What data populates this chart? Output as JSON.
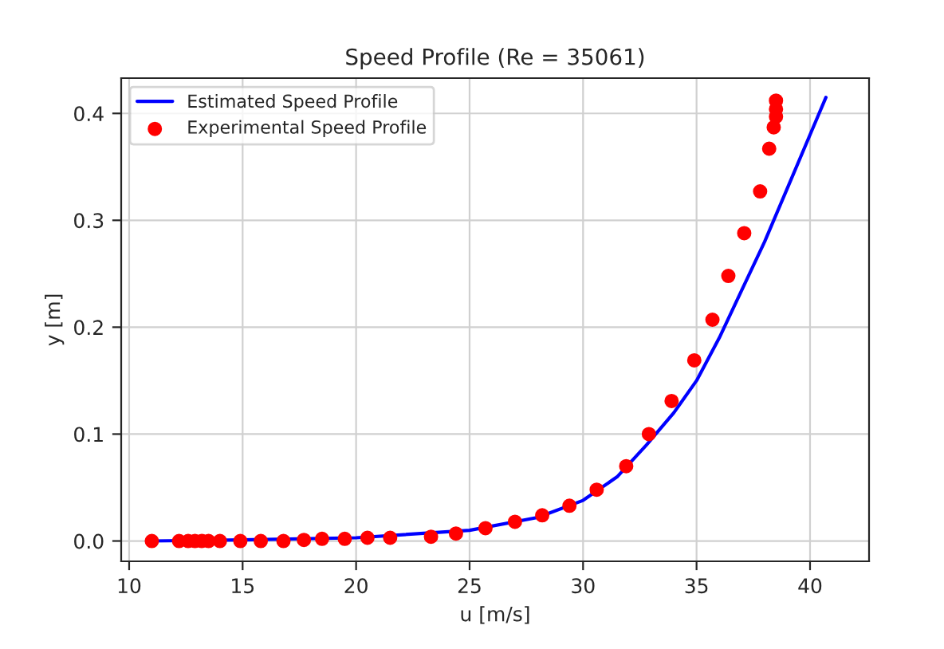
{
  "chart_data": {
    "type": "line",
    "title": "Speed Profile (Re = 35061)",
    "xlabel": "u [m/s]",
    "ylabel": "y [m]",
    "xlim": [
      9.65,
      42.6
    ],
    "ylim": [
      -0.019,
      0.433
    ],
    "xticks": [
      10,
      15,
      20,
      25,
      30,
      35,
      40
    ],
    "yticks": [
      {
        "value": 0,
        "label": "0.0"
      },
      0.1,
      0.2,
      0.3,
      0.4
    ],
    "grid": true,
    "legend": "top left",
    "series": [
      {
        "name": "Estimated Speed Profile",
        "color": "#0000ff",
        "marker": "none",
        "line_style": "solid",
        "x": [
          10.9,
          15,
          20,
          25,
          28,
          30,
          31.5,
          32.8,
          34,
          35,
          36,
          37,
          38,
          39,
          40,
          40.7
        ],
        "values": [
          0.0,
          0.001,
          0.003,
          0.01,
          0.022,
          0.038,
          0.06,
          0.09,
          0.12,
          0.15,
          0.19,
          0.235,
          0.28,
          0.33,
          0.38,
          0.415
        ]
      },
      {
        "name": "Experimental Speed Profile",
        "type": "scatter",
        "color": "#ff0000",
        "marker": "circle",
        "x": [
          11.0,
          12.2,
          12.6,
          12.9,
          13.2,
          13.5,
          14.0,
          14.9,
          15.8,
          16.8,
          17.7,
          18.5,
          19.5,
          20.5,
          21.5,
          23.3,
          24.4,
          25.7,
          27.0,
          28.2,
          29.4,
          30.6,
          31.9,
          32.9,
          33.9,
          34.9,
          35.7,
          36.4,
          37.1,
          37.8,
          38.2,
          38.4,
          38.5,
          38.5,
          38.5
        ],
        "values": [
          0.0,
          0.0,
          0.0,
          0.0,
          0.0,
          0.0,
          0.0,
          0.0,
          0.0,
          0.0,
          0.001,
          0.002,
          0.002,
          0.003,
          0.003,
          0.004,
          0.007,
          0.012,
          0.018,
          0.024,
          0.033,
          0.048,
          0.07,
          0.1,
          0.131,
          0.169,
          0.207,
          0.248,
          0.288,
          0.327,
          0.367,
          0.387,
          0.397,
          0.404,
          0.412
        ]
      }
    ]
  }
}
